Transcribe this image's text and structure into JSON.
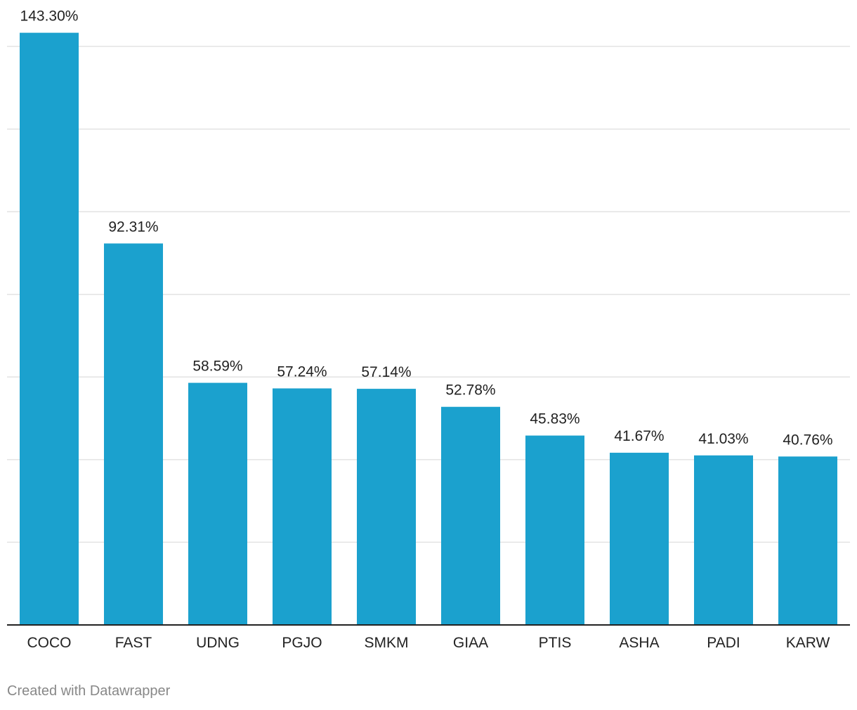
{
  "chart_data": {
    "type": "bar",
    "categories": [
      "COCO",
      "FAST",
      "UDNG",
      "PGJO",
      "SMKM",
      "GIAA",
      "PTIS",
      "ASHA",
      "PADI",
      "KARW"
    ],
    "values": [
      143.3,
      92.31,
      58.59,
      57.24,
      57.14,
      52.78,
      45.83,
      41.67,
      41.03,
      40.76
    ],
    "value_labels": [
      "143.30%",
      "92.31%",
      "58.59%",
      "57.24%",
      "57.14%",
      "52.78%",
      "45.83%",
      "41.67%",
      "41.03%",
      "40.76%"
    ],
    "ylim": [
      0,
      140
    ],
    "gridlines": [
      20,
      40,
      60,
      80,
      100,
      120,
      140
    ],
    "grid": true,
    "xlabel": "",
    "ylabel": "",
    "colors": {
      "bar": "#1ba1ce",
      "grid": "#e3e3e3",
      "axis": "#222222",
      "text": "#222222"
    }
  },
  "footer": {
    "credit": "Created with Datawrapper"
  }
}
